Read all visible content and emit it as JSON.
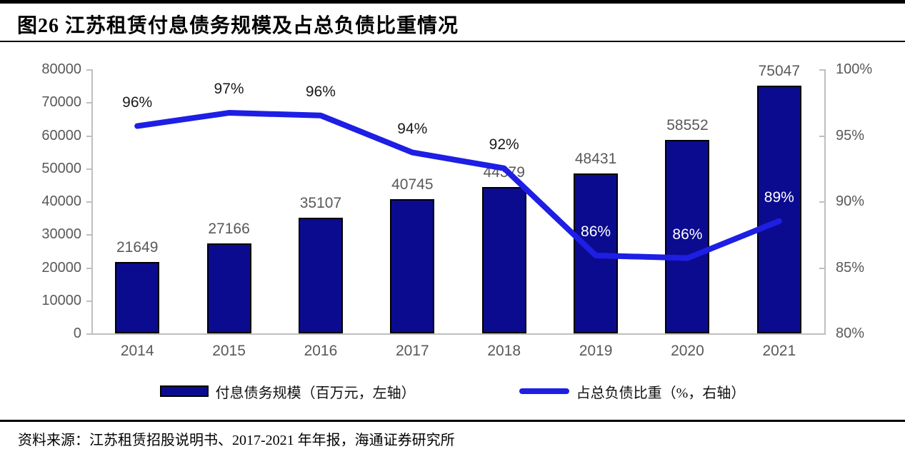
{
  "title": "图26 江苏租赁付息债务规模及占总负债比重情况",
  "source": "资料来源：江苏租赁招股说明书、2017-2021 年年报，海通证券研究所",
  "legend": {
    "bar_label": "付息债务规模（百万元，左轴）",
    "line_label": "占总负债比重（%，右轴）"
  },
  "colors": {
    "bar_fill": "#0b0b8f",
    "bar_border": "#000000",
    "line": "#1e1ee4",
    "axis": "#bfbfbf",
    "axis_text": "#595959",
    "label_dark": "#1a1a1a",
    "label_light": "#ffffff"
  },
  "chart_data": {
    "type": "bar+line combo",
    "categories": [
      "2014",
      "2015",
      "2016",
      "2017",
      "2018",
      "2019",
      "2020",
      "2021"
    ],
    "series": [
      {
        "name": "付息债务规模（百万元，左轴）",
        "type": "bar",
        "axis": "left",
        "values": [
          21649,
          27166,
          35107,
          40745,
          44379,
          48431,
          58552,
          75047
        ]
      },
      {
        "name": "占总负债比重（%，右轴）",
        "type": "line",
        "axis": "right",
        "labels": [
          "96%",
          "97%",
          "96%",
          "94%",
          "92%",
          "86%",
          "86%",
          "89%"
        ],
        "values_estimated_pct": [
          95.7,
          96.7,
          96.5,
          93.7,
          92.5,
          85.9,
          85.7,
          88.5
        ]
      }
    ],
    "left_axis": {
      "min": 0,
      "max": 80000,
      "step": 10000
    },
    "right_axis": {
      "min": 80,
      "max": 100,
      "step": 5,
      "suffix": "%"
    },
    "grid": "off",
    "legend_position": "bottom",
    "title": "图26 江苏租赁付息债务规模及占总负债比重情况"
  }
}
